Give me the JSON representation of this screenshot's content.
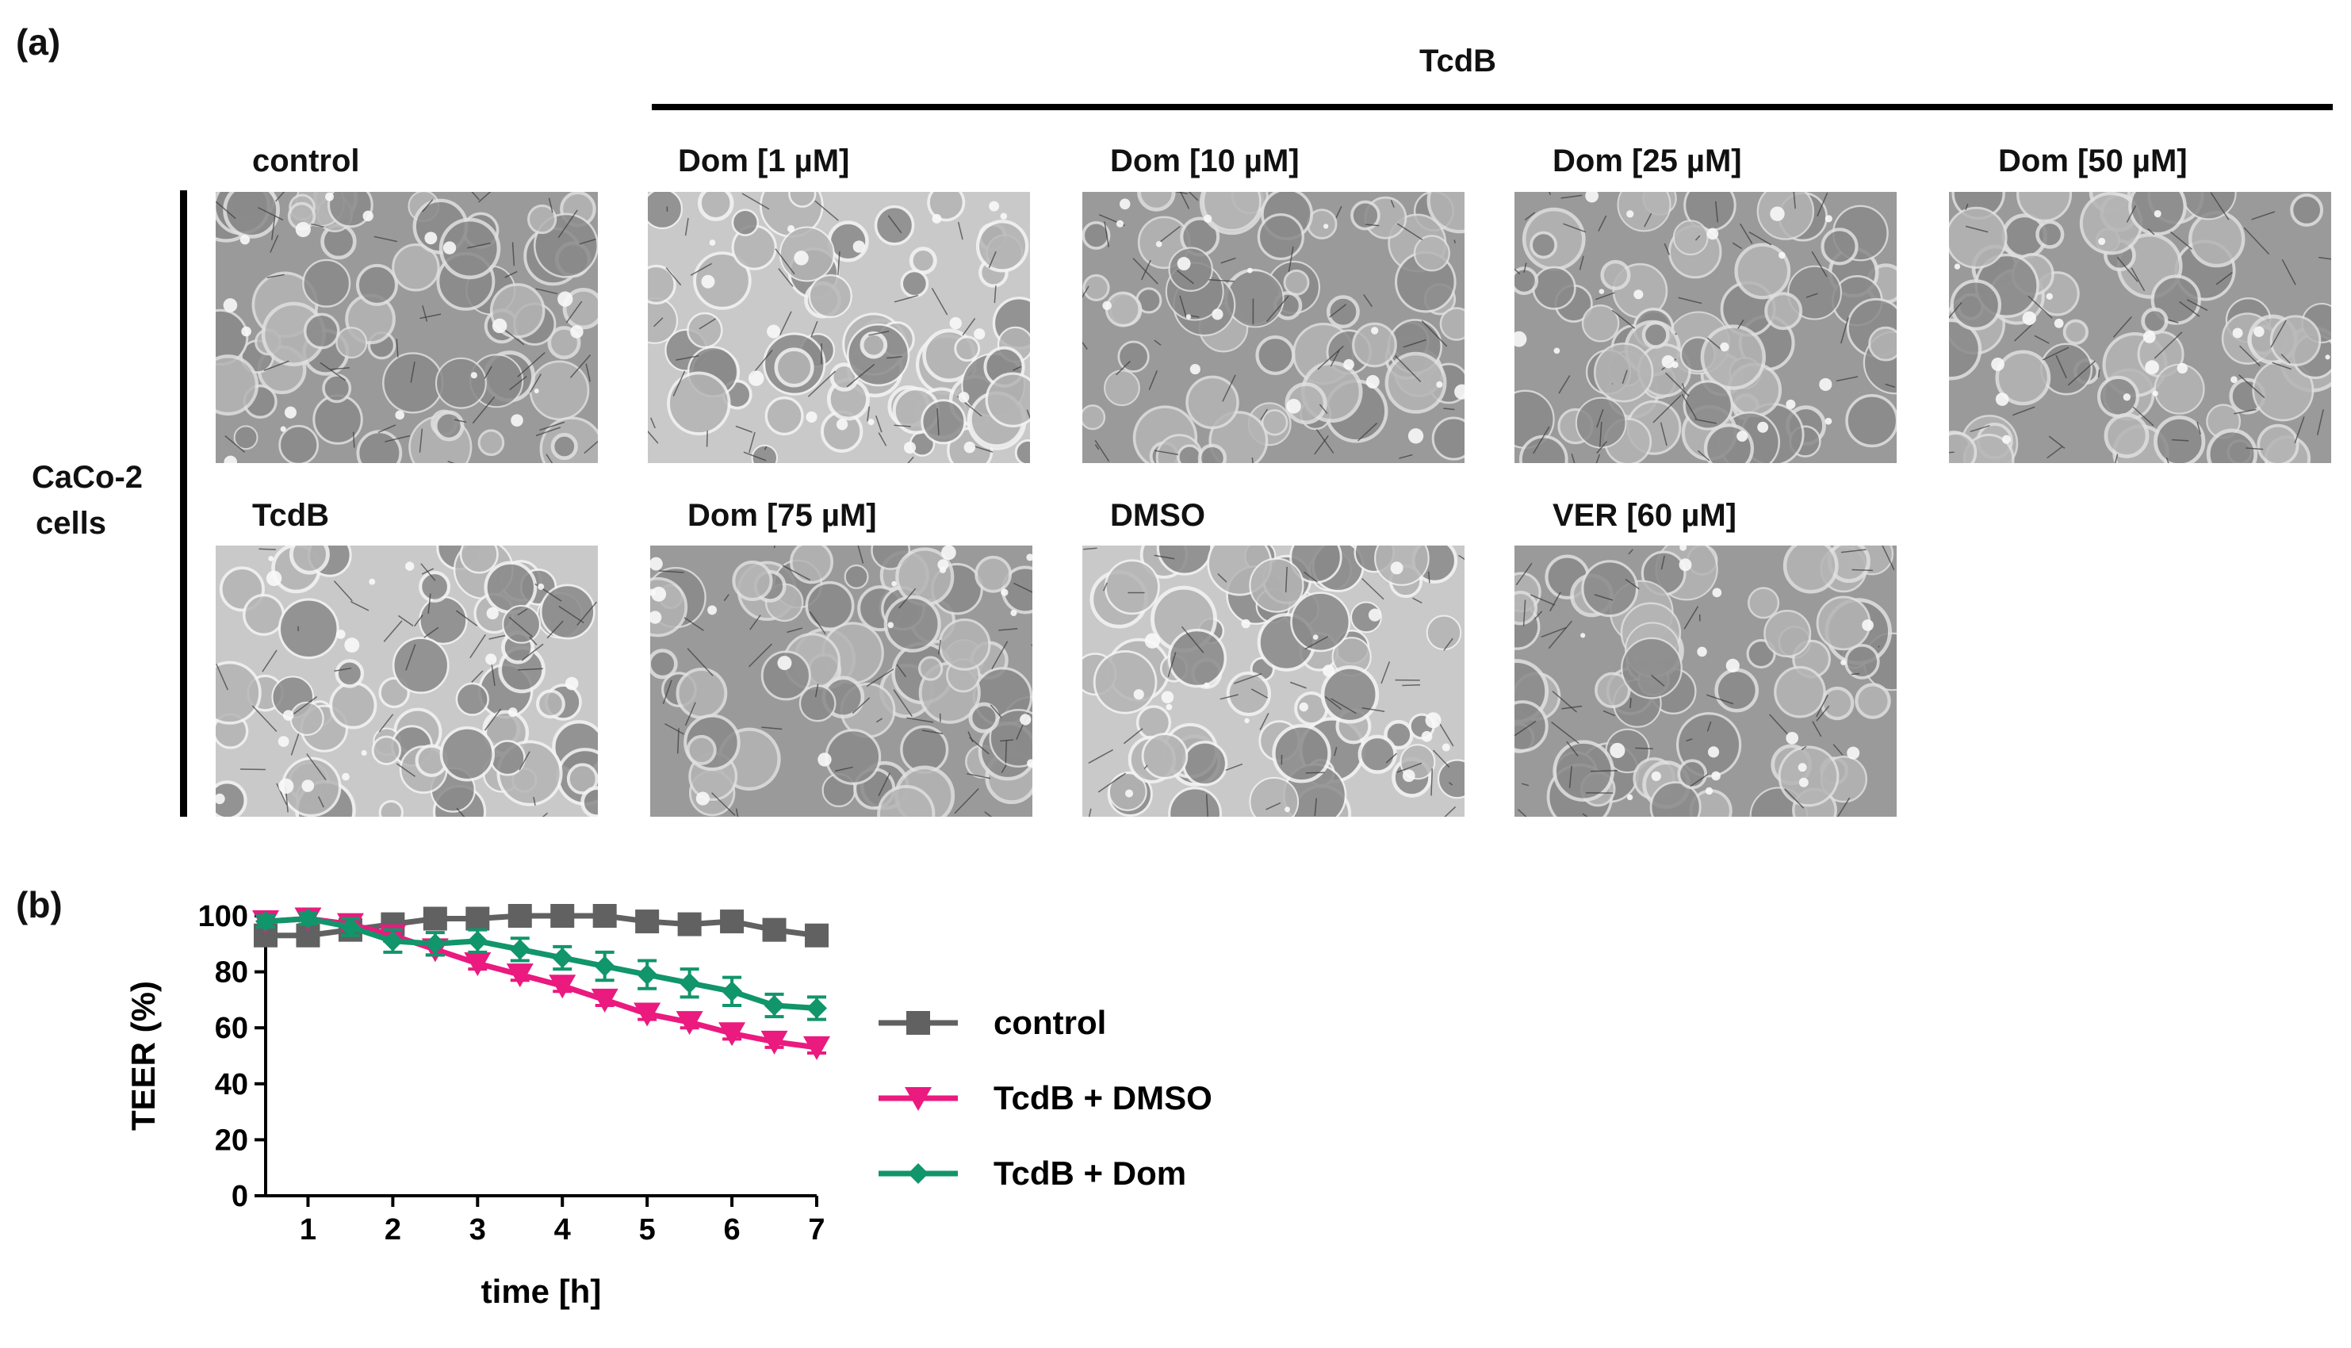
{
  "panel_a": {
    "label": "(a)",
    "tcdb_header": "TcdB",
    "row_label_line1": "CaCo-2",
    "row_label_line2": "cells",
    "images": [
      {
        "label": "control"
      },
      {
        "label": "Dom [1 µM]"
      },
      {
        "label": "Dom [10 µM]"
      },
      {
        "label": "Dom [25 µM]"
      },
      {
        "label": "Dom [50 µM]"
      },
      {
        "label": "TcdB"
      },
      {
        "label": "Dom [75 µM]"
      },
      {
        "label": "DMSO"
      },
      {
        "label": "VER [60 µM]"
      }
    ]
  },
  "panel_b": {
    "label": "(b)"
  },
  "chart_data": {
    "type": "line",
    "title": "",
    "xlabel": "time [h]",
    "ylabel": "TEER (%)",
    "xlim": [
      0.5,
      7
    ],
    "ylim": [
      0,
      100
    ],
    "xticks": [
      1,
      2,
      3,
      4,
      5,
      6,
      7
    ],
    "yticks": [
      0,
      20,
      40,
      60,
      80,
      100
    ],
    "x": [
      0.5,
      1,
      1.5,
      2,
      2.5,
      3,
      3.5,
      4,
      4.5,
      5,
      5.5,
      6,
      6.5,
      7
    ],
    "series": [
      {
        "name": "control",
        "marker": "square",
        "color": "#616161",
        "values": [
          93,
          93,
          95,
          97,
          99,
          99,
          100,
          100,
          100,
          98,
          97,
          98,
          95,
          93
        ],
        "errors": [
          2,
          2,
          2,
          2,
          1,
          1,
          1,
          1,
          1,
          1,
          1,
          1,
          1,
          1
        ]
      },
      {
        "name": "TcdB + DMSO",
        "marker": "triangle-down",
        "color": "#ea1a7f",
        "values": [
          98,
          99,
          97,
          93,
          88,
          83,
          79,
          75,
          70,
          65,
          62,
          58,
          55,
          53
        ],
        "errors": [
          2,
          2,
          2,
          2,
          2,
          2,
          2,
          2,
          2,
          2,
          2,
          2,
          2,
          2
        ]
      },
      {
        "name": "TcdB + Dom",
        "marker": "diamond",
        "color": "#11956a",
        "values": [
          98,
          99,
          96,
          91,
          90,
          91,
          88,
          85,
          82,
          79,
          76,
          73,
          68,
          67
        ],
        "errors": [
          2,
          2,
          3,
          4,
          4,
          4,
          4,
          4,
          5,
          5,
          5,
          5,
          4,
          4
        ]
      }
    ],
    "legend_position": "right"
  }
}
